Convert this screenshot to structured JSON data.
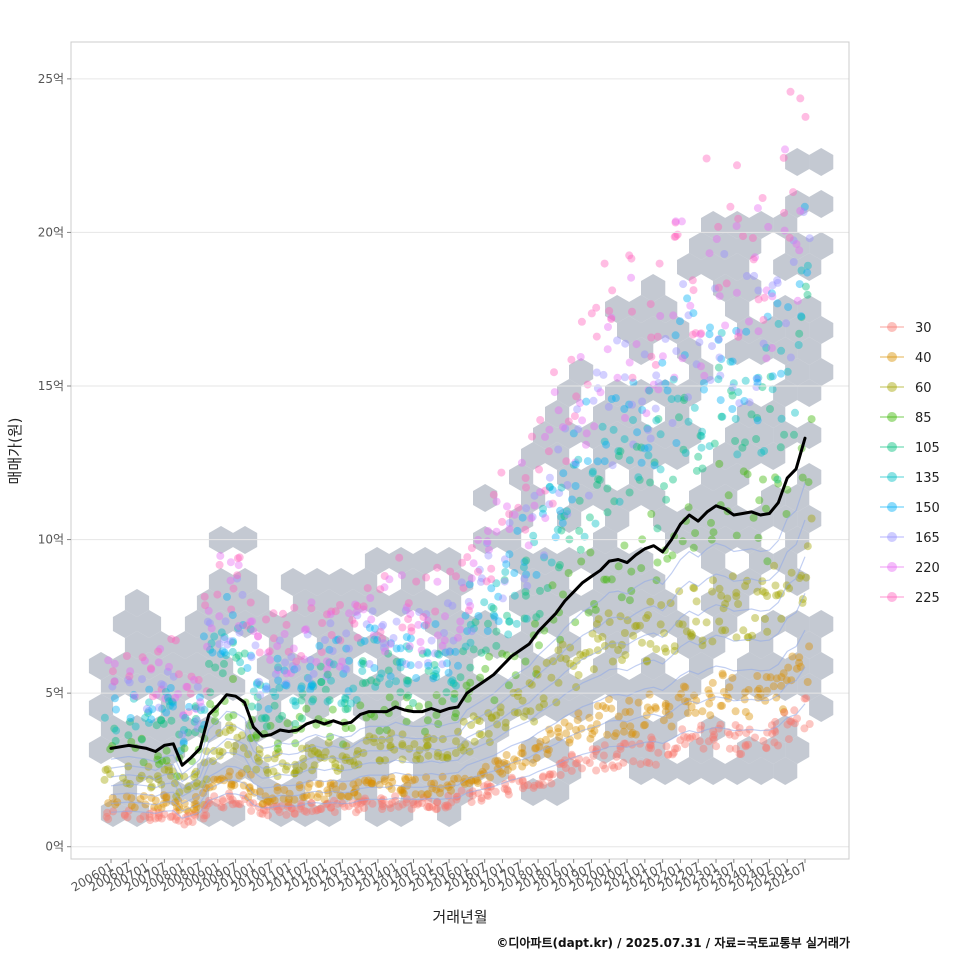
{
  "chart_data": {
    "type": "line",
    "xlabel": "거래년월",
    "ylabel": "매매가(원)",
    "caption": "©디아파트(dapt.kr) / 2025.07.31 / 자료=국토교통부 실거래가",
    "x_ticks": [
      "200601",
      "200607",
      "200701",
      "200707",
      "200801",
      "200807",
      "200901",
      "200907",
      "201001",
      "201007",
      "201101",
      "201107",
      "201201",
      "201207",
      "201301",
      "201307",
      "201401",
      "201407",
      "201501",
      "201507",
      "201601",
      "201607",
      "201701",
      "201707",
      "201801",
      "201807",
      "201901",
      "201907",
      "202001",
      "202007",
      "202101",
      "202107",
      "202201",
      "202207",
      "202301",
      "202307",
      "202401",
      "202407",
      "202501",
      "202507"
    ],
    "y_ticks": [
      {
        "value": 0,
        "label": "0억"
      },
      {
        "value": 5,
        "label": "5억"
      },
      {
        "value": 10,
        "label": "10억"
      },
      {
        "value": 15,
        "label": "15억"
      },
      {
        "value": 20,
        "label": "20억"
      },
      {
        "value": 25,
        "label": "25억"
      }
    ],
    "ylim": [
      -0.4,
      26.2
    ],
    "grid": true,
    "legend": {
      "position": "right",
      "entries": [
        {
          "label": "30",
          "color": "#F8766D"
        },
        {
          "label": "40",
          "color": "#D89000"
        },
        {
          "label": "60",
          "color": "#A3A500"
        },
        {
          "label": "85",
          "color": "#39B600"
        },
        {
          "label": "105",
          "color": "#00BF7D"
        },
        {
          "label": "135",
          "color": "#00BFC4"
        },
        {
          "label": "150",
          "color": "#00B0F6"
        },
        {
          "label": "165",
          "color": "#9590FF"
        },
        {
          "label": "220",
          "color": "#E76BF3"
        },
        {
          "label": "225",
          "color": "#FF62BC"
        }
      ]
    },
    "series": [
      {
        "style": "median-line",
        "color": "#000000",
        "x": [
          "200601",
          "200607",
          "200701",
          "200704",
          "200707",
          "200710",
          "200801",
          "200804",
          "200807",
          "200810",
          "200901",
          "200904",
          "200907",
          "200910",
          "201001",
          "201004",
          "201007",
          "201010",
          "201101",
          "201104",
          "201107",
          "201110",
          "201201",
          "201204",
          "201207",
          "201210",
          "201301",
          "201304",
          "201307",
          "201310",
          "201401",
          "201404",
          "201407",
          "201410",
          "201501",
          "201504",
          "201507",
          "201510",
          "201601",
          "201604",
          "201607",
          "201610",
          "201701",
          "201704",
          "201707",
          "201710",
          "201801",
          "201804",
          "201807",
          "201810",
          "201901",
          "201904",
          "201907",
          "201910",
          "202001",
          "202004",
          "202007",
          "202010",
          "202101",
          "202104",
          "202107",
          "202110",
          "202201",
          "202204",
          "202207",
          "202210",
          "202301",
          "202304",
          "202307",
          "202310",
          "202401",
          "202404",
          "202407",
          "202410",
          "202501",
          "202504",
          "202507"
        ],
        "y": [
          3.2,
          3.3,
          3.2,
          3.1,
          3.3,
          3.35,
          2.65,
          2.9,
          3.2,
          4.3,
          4.6,
          4.95,
          4.9,
          4.7,
          3.9,
          3.6,
          3.65,
          3.8,
          3.75,
          3.8,
          4.0,
          4.1,
          4.0,
          4.1,
          4.0,
          4.05,
          4.3,
          4.4,
          4.4,
          4.4,
          4.55,
          4.45,
          4.4,
          4.4,
          4.5,
          4.4,
          4.5,
          4.55,
          5.0,
          5.2,
          5.4,
          5.6,
          5.9,
          6.2,
          6.4,
          6.6,
          7.0,
          7.3,
          7.6,
          8.0,
          8.3,
          8.6,
          8.8,
          9.0,
          9.3,
          9.35,
          9.25,
          9.5,
          9.7,
          9.8,
          9.6,
          10.0,
          10.5,
          10.8,
          10.6,
          10.9,
          11.1,
          11.0,
          10.8,
          10.85,
          10.9,
          10.8,
          10.85,
          11.2,
          12.0,
          12.3,
          13.3
        ]
      }
    ]
  }
}
